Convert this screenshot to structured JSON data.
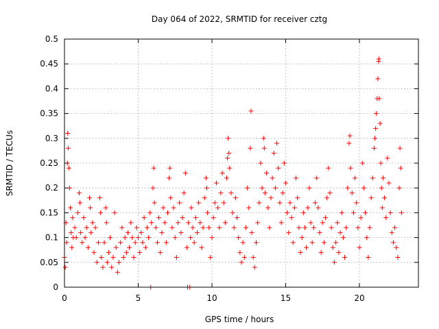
{
  "chart_data": {
    "type": "scatter",
    "title": "Day 064 of 2022, SRMTID for receiver cztg",
    "xlabel": "GPS time / hours",
    "ylabel": "SRMTID / TECUs",
    "xlim": [
      0,
      24
    ],
    "ylim": [
      0,
      0.5
    ],
    "x_ticks": [
      "0",
      "5",
      "10",
      "15",
      "20"
    ],
    "y_ticks": [
      "0",
      "0.05",
      "0.1",
      "0.15",
      "0.2",
      "0.25",
      "0.3",
      "0.35",
      "0.4",
      "0.45",
      "0.5"
    ],
    "grid": true,
    "marker": "+",
    "color": "#ff0000",
    "series": [
      {
        "points": [
          [
            0.0,
            0.06
          ],
          [
            0.05,
            0.04
          ],
          [
            0.1,
            0.13
          ],
          [
            0.15,
            0.09
          ],
          [
            0.2,
            0.25
          ],
          [
            0.22,
            0.31
          ],
          [
            0.25,
            0.28
          ],
          [
            0.3,
            0.24
          ],
          [
            0.35,
            0.2
          ],
          [
            0.4,
            0.16
          ],
          [
            0.45,
            0.11
          ],
          [
            0.5,
            0.08
          ],
          [
            0.55,
            0.14
          ],
          [
            0.6,
            0.1
          ],
          [
            0.7,
            0.12
          ],
          [
            0.8,
            0.1
          ],
          [
            0.9,
            0.15
          ],
          [
            1.0,
            0.19
          ],
          [
            1.05,
            0.17
          ],
          [
            1.1,
            0.11
          ],
          [
            1.2,
            0.09
          ],
          [
            1.3,
            0.14
          ],
          [
            1.4,
            0.1
          ],
          [
            1.5,
            0.12
          ],
          [
            1.6,
            0.08
          ],
          [
            1.7,
            0.18
          ],
          [
            1.75,
            0.16
          ],
          [
            1.8,
            0.11
          ],
          [
            1.9,
            0.13
          ],
          [
            2.0,
            0.07
          ],
          [
            2.1,
            0.12
          ],
          [
            2.2,
            0.05
          ],
          [
            2.3,
            0.09
          ],
          [
            2.4,
            0.18
          ],
          [
            2.45,
            0.15
          ],
          [
            2.5,
            0.06
          ],
          [
            2.6,
            0.04
          ],
          [
            2.7,
            0.09
          ],
          [
            2.8,
            0.16
          ],
          [
            2.85,
            0.13
          ],
          [
            2.9,
            0.05
          ],
          [
            3.0,
            0.07
          ],
          [
            3.1,
            0.1
          ],
          [
            3.2,
            0.04
          ],
          [
            3.3,
            0.06
          ],
          [
            3.4,
            0.15
          ],
          [
            3.5,
            0.08
          ],
          [
            3.6,
            0.03
          ],
          [
            3.7,
            0.05
          ],
          [
            3.8,
            0.09
          ],
          [
            3.9,
            0.12
          ],
          [
            4.0,
            0.06
          ],
          [
            4.1,
            0.1
          ],
          [
            4.2,
            0.07
          ],
          [
            4.3,
            0.11
          ],
          [
            4.4,
            0.08
          ],
          [
            4.5,
            0.13
          ],
          [
            4.6,
            0.1
          ],
          [
            4.7,
            0.06
          ],
          [
            4.8,
            0.09
          ],
          [
            4.9,
            0.12
          ],
          [
            5.0,
            0.1
          ],
          [
            5.1,
            0.07
          ],
          [
            5.2,
            0.11
          ],
          [
            5.3,
            0.09
          ],
          [
            5.4,
            0.14
          ],
          [
            5.5,
            0.08
          ],
          [
            5.6,
            0.12
          ],
          [
            5.7,
            0.1
          ],
          [
            5.8,
            0.15
          ],
          [
            5.85,
            0.0
          ],
          [
            5.9,
            0.13
          ],
          [
            6.0,
            0.2
          ],
          [
            6.05,
            0.24
          ],
          [
            6.1,
            0.17
          ],
          [
            6.2,
            0.12
          ],
          [
            6.3,
            0.09
          ],
          [
            6.4,
            0.14
          ],
          [
            6.5,
            0.07
          ],
          [
            6.6,
            0.11
          ],
          [
            6.7,
            0.16
          ],
          [
            6.8,
            0.13
          ],
          [
            6.9,
            0.09
          ],
          [
            7.0,
            0.15
          ],
          [
            7.1,
            0.22
          ],
          [
            7.15,
            0.24
          ],
          [
            7.2,
            0.18
          ],
          [
            7.3,
            0.12
          ],
          [
            7.4,
            0.16
          ],
          [
            7.5,
            0.1
          ],
          [
            7.6,
            0.06
          ],
          [
            7.7,
            0.13
          ],
          [
            7.8,
            0.17
          ],
          [
            7.9,
            0.11
          ],
          [
            8.0,
            0.14
          ],
          [
            8.1,
            0.19
          ],
          [
            8.2,
            0.23
          ],
          [
            8.3,
            0.08
          ],
          [
            8.35,
            0.0
          ],
          [
            8.4,
            0.13
          ],
          [
            8.5,
            0.0
          ],
          [
            8.55,
            0.1
          ],
          [
            8.6,
            0.16
          ],
          [
            8.7,
            0.12
          ],
          [
            8.8,
            0.09
          ],
          [
            8.9,
            0.14
          ],
          [
            9.0,
            0.11
          ],
          [
            9.1,
            0.17
          ],
          [
            9.2,
            0.13
          ],
          [
            9.3,
            0.08
          ],
          [
            9.4,
            0.12
          ],
          [
            9.5,
            0.18
          ],
          [
            9.6,
            0.22
          ],
          [
            9.65,
            0.2
          ],
          [
            9.7,
            0.15
          ],
          [
            9.8,
            0.12
          ],
          [
            9.9,
            0.06
          ],
          [
            10.0,
            0.1
          ],
          [
            10.1,
            0.14
          ],
          [
            10.2,
            0.17
          ],
          [
            10.3,
            0.21
          ],
          [
            10.4,
            0.16
          ],
          [
            10.5,
            0.12
          ],
          [
            10.6,
            0.19
          ],
          [
            10.7,
            0.23
          ],
          [
            10.8,
            0.17
          ],
          [
            10.9,
            0.13
          ],
          [
            11.0,
            0.22
          ],
          [
            11.05,
            0.26
          ],
          [
            11.1,
            0.3
          ],
          [
            11.15,
            0.27
          ],
          [
            11.2,
            0.24
          ],
          [
            11.3,
            0.19
          ],
          [
            11.4,
            0.15
          ],
          [
            11.5,
            0.12
          ],
          [
            11.6,
            0.18
          ],
          [
            11.7,
            0.14
          ],
          [
            11.8,
            0.1
          ],
          [
            11.9,
            0.07
          ],
          [
            12.0,
            0.05
          ],
          [
            12.1,
            0.09
          ],
          [
            12.2,
            0.06
          ],
          [
            12.3,
            0.12
          ],
          [
            12.4,
            0.2
          ],
          [
            12.5,
            0.16
          ],
          [
            12.6,
            0.28
          ],
          [
            12.65,
            0.355
          ],
          [
            12.7,
            0.11
          ],
          [
            12.8,
            0.06
          ],
          [
            12.9,
            0.04
          ],
          [
            13.0,
            0.09
          ],
          [
            13.1,
            0.13
          ],
          [
            13.2,
            0.17
          ],
          [
            13.3,
            0.25
          ],
          [
            13.4,
            0.2
          ],
          [
            13.5,
            0.3
          ],
          [
            13.55,
            0.28
          ],
          [
            13.6,
            0.19
          ],
          [
            13.7,
            0.23
          ],
          [
            13.8,
            0.16
          ],
          [
            13.9,
            0.12
          ],
          [
            14.0,
            0.18
          ],
          [
            14.1,
            0.22
          ],
          [
            14.2,
            0.27
          ],
          [
            14.3,
            0.2
          ],
          [
            14.4,
            0.29
          ],
          [
            14.5,
            0.24
          ],
          [
            14.6,
            0.17
          ],
          [
            14.7,
            0.13
          ],
          [
            14.8,
            0.19
          ],
          [
            14.9,
            0.25
          ],
          [
            15.0,
            0.21
          ],
          [
            15.1,
            0.15
          ],
          [
            15.2,
            0.11
          ],
          [
            15.3,
            0.17
          ],
          [
            15.4,
            0.14
          ],
          [
            15.5,
            0.09
          ],
          [
            15.6,
            0.16
          ],
          [
            15.7,
            0.22
          ],
          [
            15.8,
            0.18
          ],
          [
            15.9,
            0.12
          ],
          [
            16.0,
            0.07
          ],
          [
            16.1,
            0.1
          ],
          [
            16.2,
            0.15
          ],
          [
            16.3,
            0.12
          ],
          [
            16.4,
            0.08
          ],
          [
            16.5,
            0.16
          ],
          [
            16.6,
            0.2
          ],
          [
            16.7,
            0.13
          ],
          [
            16.8,
            0.09
          ],
          [
            16.9,
            0.12
          ],
          [
            17.0,
            0.17
          ],
          [
            17.1,
            0.22
          ],
          [
            17.2,
            0.16
          ],
          [
            17.3,
            0.11
          ],
          [
            17.4,
            0.07
          ],
          [
            17.5,
            0.13
          ],
          [
            17.6,
            0.09
          ],
          [
            17.7,
            0.14
          ],
          [
            17.8,
            0.18
          ],
          [
            17.9,
            0.24
          ],
          [
            18.0,
            0.19
          ],
          [
            18.1,
            0.12
          ],
          [
            18.2,
            0.08
          ],
          [
            18.3,
            0.05
          ],
          [
            18.4,
            0.09
          ],
          [
            18.5,
            0.13
          ],
          [
            18.6,
            0.07
          ],
          [
            18.7,
            0.11
          ],
          [
            18.8,
            0.15
          ],
          [
            18.9,
            0.1
          ],
          [
            19.0,
            0.06
          ],
          [
            19.1,
            0.12
          ],
          [
            19.2,
            0.2
          ],
          [
            19.3,
            0.29
          ],
          [
            19.35,
            0.305
          ],
          [
            19.4,
            0.24
          ],
          [
            19.5,
            0.19
          ],
          [
            19.6,
            0.15
          ],
          [
            19.7,
            0.22
          ],
          [
            19.8,
            0.17
          ],
          [
            19.9,
            0.12
          ],
          [
            20.0,
            0.08
          ],
          [
            20.1,
            0.14
          ],
          [
            20.2,
            0.25
          ],
          [
            20.3,
            0.2
          ],
          [
            20.4,
            0.15
          ],
          [
            20.5,
            0.1
          ],
          [
            20.6,
            0.06
          ],
          [
            20.7,
            0.12
          ],
          [
            20.8,
            0.18
          ],
          [
            20.9,
            0.22
          ],
          [
            21.0,
            0.28
          ],
          [
            21.05,
            0.3
          ],
          [
            21.1,
            0.32
          ],
          [
            21.15,
            0.35
          ],
          [
            21.2,
            0.38
          ],
          [
            21.25,
            0.42
          ],
          [
            21.3,
            0.455
          ],
          [
            21.32,
            0.46
          ],
          [
            21.35,
            0.38
          ],
          [
            21.4,
            0.33
          ],
          [
            21.45,
            0.25
          ],
          [
            21.5,
            0.2
          ],
          [
            21.55,
            0.16
          ],
          [
            21.6,
            0.22
          ],
          [
            21.7,
            0.18
          ],
          [
            21.8,
            0.14
          ],
          [
            21.9,
            0.26
          ],
          [
            22.0,
            0.21
          ],
          [
            22.1,
            0.15
          ],
          [
            22.2,
            0.11
          ],
          [
            22.3,
            0.09
          ],
          [
            22.4,
            0.12
          ],
          [
            22.5,
            0.08
          ],
          [
            22.6,
            0.06
          ],
          [
            22.7,
            0.2
          ],
          [
            22.75,
            0.28
          ],
          [
            22.8,
            0.24
          ],
          [
            22.85,
            0.15
          ]
        ]
      }
    ]
  }
}
